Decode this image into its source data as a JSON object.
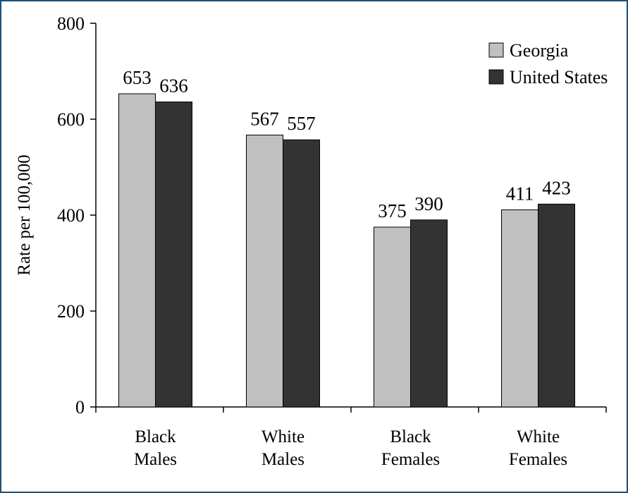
{
  "chart_data": {
    "type": "bar",
    "title": "",
    "xlabel": "",
    "ylabel": "Rate per 100,000",
    "ylim": [
      0,
      800
    ],
    "yticks": [
      0,
      200,
      400,
      600,
      800
    ],
    "grid": false,
    "legend_position": "top-right",
    "categories": [
      [
        "Black",
        "Males"
      ],
      [
        "White",
        "Males"
      ],
      [
        "Black",
        "Females"
      ],
      [
        "White",
        "Females"
      ]
    ],
    "series": [
      {
        "name": "Georgia",
        "values": [
          653,
          567,
          375,
          411
        ],
        "color": "#c0c0c0"
      },
      {
        "name": "United States",
        "values": [
          636,
          557,
          390,
          423
        ],
        "color": "#333333"
      }
    ]
  }
}
